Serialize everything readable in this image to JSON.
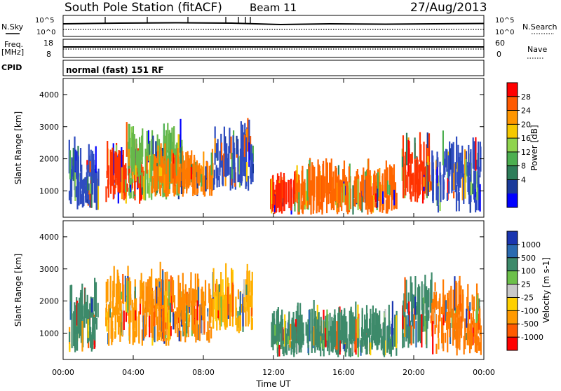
{
  "header": {
    "station": "South Pole Station (fitACF)",
    "beam": "Beam 11",
    "date": "27/Aug/2013"
  },
  "panels": {
    "nsky_label": "N.Sky",
    "nsearch_label": "N.Search",
    "nsky_ticks": [
      "10^5",
      "10^0"
    ],
    "nsearch_ticks": [
      "10^5",
      "10^0"
    ],
    "freq_label": "Freq.",
    "freq_unit": "[MHz]",
    "freq_ticks": [
      "18",
      "8"
    ],
    "nave_label": "Nave",
    "nave_ticks": [
      "60",
      "0"
    ],
    "cpid_label": "CPID",
    "cpid_text": "normal (fast) 151 RF"
  },
  "chart_data": [
    {
      "type": "heatmap",
      "title": "",
      "ylabel": "Slant Range [km]",
      "xlabel": "",
      "y_ticks": [
        "4000",
        "3000",
        "2000",
        "1000"
      ],
      "ylim": [
        180,
        4500
      ],
      "colorbar_label": "Power [dB]",
      "colorbar_ticks": [
        "28",
        "24",
        "20",
        "16",
        "12",
        "8",
        "4"
      ],
      "colorbar_colors": [
        "#ff0000",
        "#ff5a00",
        "#ff9600",
        "#f5c800",
        "#8fd44e",
        "#4caf50",
        "#2e7d5a",
        "#1a3a9a",
        "#0000ff"
      ],
      "scatter_regions": [
        {
          "t0": 0.3,
          "t1": 2.0,
          "r0": 400,
          "r1": 1700,
          "c": "#2e4cbf"
        },
        {
          "t0": 2.4,
          "t1": 4.6,
          "r0": 600,
          "r1": 1600,
          "c": "#ff3300"
        },
        {
          "t0": 3.5,
          "t1": 6.8,
          "r0": 700,
          "r1": 2200,
          "c": "#66b84a"
        },
        {
          "t0": 5.0,
          "t1": 8.5,
          "r0": 800,
          "r1": 1500,
          "c": "#ff7a00"
        },
        {
          "t0": 8.5,
          "t1": 10.8,
          "r0": 1000,
          "r1": 2300,
          "c": "#2e4cbf"
        },
        {
          "t0": 11.8,
          "t1": 13.2,
          "r0": 250,
          "r1": 800,
          "c": "#ff2200"
        },
        {
          "t0": 13.2,
          "t1": 19.0,
          "r0": 250,
          "r1": 1000,
          "c": "#ff6600"
        },
        {
          "t0": 19.3,
          "t1": 21.0,
          "r0": 600,
          "r1": 2000,
          "c": "#ff3300"
        },
        {
          "t0": 21.0,
          "t1": 23.8,
          "r0": 300,
          "r1": 1800,
          "c": "#2e4cbf"
        }
      ]
    },
    {
      "type": "heatmap",
      "title": "",
      "ylabel": "Slant Range [km]",
      "xlabel": "Time UT",
      "x_ticks": [
        "00:00",
        "04:00",
        "08:00",
        "12:00",
        "16:00",
        "20:00",
        "00:00"
      ],
      "y_ticks": [
        "4000",
        "3000",
        "2000",
        "1000"
      ],
      "ylim": [
        180,
        4500
      ],
      "colorbar_label": "Velocity [m s-1]",
      "colorbar_ticks": [
        "1000",
        "500",
        "100",
        "25",
        "-25",
        "-100",
        "-500",
        "-1000"
      ],
      "colorbar_colors": [
        "#1a35b0",
        "#2a6ab0",
        "#3d8a6a",
        "#6cc04a",
        "#c8c8c8",
        "#ffd000",
        "#ff9a00",
        "#ff5a00",
        "#ff0000"
      ],
      "scatter_regions": [
        {
          "t0": 0.3,
          "t1": 2.0,
          "r0": 400,
          "r1": 1700,
          "c": "#3d8a6a"
        },
        {
          "t0": 2.4,
          "t1": 6.0,
          "r0": 600,
          "r1": 2200,
          "c": "#ff9a00"
        },
        {
          "t0": 4.5,
          "t1": 8.5,
          "r0": 700,
          "r1": 2000,
          "c": "#ff8a00"
        },
        {
          "t0": 8.5,
          "t1": 10.8,
          "r0": 1000,
          "r1": 2300,
          "c": "#ffb000"
        },
        {
          "t0": 11.8,
          "t1": 19.0,
          "r0": 250,
          "r1": 1000,
          "c": "#3d8a6a"
        },
        {
          "t0": 19.3,
          "t1": 21.0,
          "r0": 500,
          "r1": 2000,
          "c": "#3d8a6a"
        },
        {
          "t0": 21.0,
          "t1": 23.8,
          "r0": 300,
          "r1": 1800,
          "c": "#ff7a00"
        }
      ]
    }
  ]
}
